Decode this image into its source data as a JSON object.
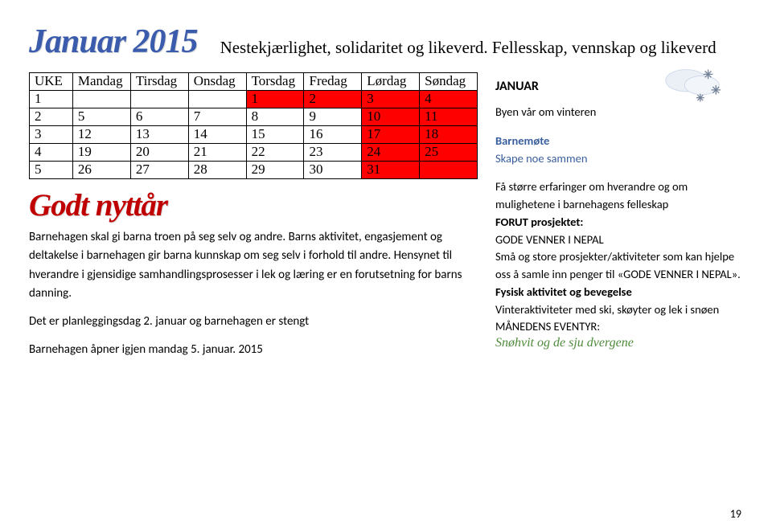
{
  "title": "Januar 2015",
  "subtitle": "Nestekjærlighet, solidaritet og likeverd. Fellesskap, vennskap og likeverd",
  "subheading": "Godt nyttår",
  "calendar": {
    "columns": [
      "UKE",
      "Mandag",
      "Tirsdag",
      "Onsdag",
      "Torsdag",
      "Fredag",
      "Lørdag",
      "Søndag"
    ],
    "rows": [
      {
        "cells": [
          "1",
          "",
          "",
          "",
          "1",
          "2",
          "3",
          "4"
        ],
        "red": [
          4,
          5,
          6,
          7
        ]
      },
      {
        "cells": [
          "2",
          "5",
          "6",
          "7",
          "8",
          "9",
          "10",
          "11"
        ],
        "red": [
          6,
          7
        ]
      },
      {
        "cells": [
          "3",
          "12",
          "13",
          "14",
          "15",
          "16",
          "17",
          "18"
        ],
        "red": [
          6,
          7
        ]
      },
      {
        "cells": [
          "4",
          "19",
          "20",
          "21",
          "22",
          "23",
          "24",
          "25"
        ],
        "red": [
          6,
          7
        ]
      },
      {
        "cells": [
          "5",
          "26",
          "27",
          "28",
          "29",
          "30",
          "31",
          ""
        ],
        "red": [
          6,
          7
        ]
      }
    ],
    "col_widths": [
      "54px",
      "72px",
      "72px",
      "72px",
      "72px",
      "72px",
      "72px",
      "72px"
    ]
  },
  "body": {
    "p1": "Barnehagen skal gi barna troen på seg selv og andre. Barns aktivitet, engasjement og deltakelse i barnehagen gir barna kunnskap om seg selv i forhold til andre. Hensynet til hverandre i gjensidige samhandlingsprosesser i lek og læring er en forutsetning for barns danning.",
    "p2": "Det er planleggingsdag 2. januar og barnehagen er stengt",
    "p3": "Barnehagen åpner igjen mandag 5. januar. 2015"
  },
  "side": {
    "month": "JANUAR",
    "line1": "Byen vår om vinteren",
    "heading1": "Barnemøte",
    "line2": "Skape noe sammen",
    "line3": "Få større erfaringer om hverandre og om mulighetene i barnehagens felleskap",
    "heading2": "FORUT prosjektet:",
    "line4": "GODE VENNER I NEPAL",
    "line5": "Små og store prosjekter/aktiviteter som kan hjelpe oss å samle inn penger til «GODE VENNER I NEPAL».",
    "heading3": "Fysisk aktivitet og bevegelse",
    "line6": "Vinteraktiviteter med ski, skøyter og lek i snøen",
    "line7": "MÅNEDENS EVENTYR:",
    "line8": "Snøhvit og de sju dvergene"
  },
  "page_number": "19"
}
